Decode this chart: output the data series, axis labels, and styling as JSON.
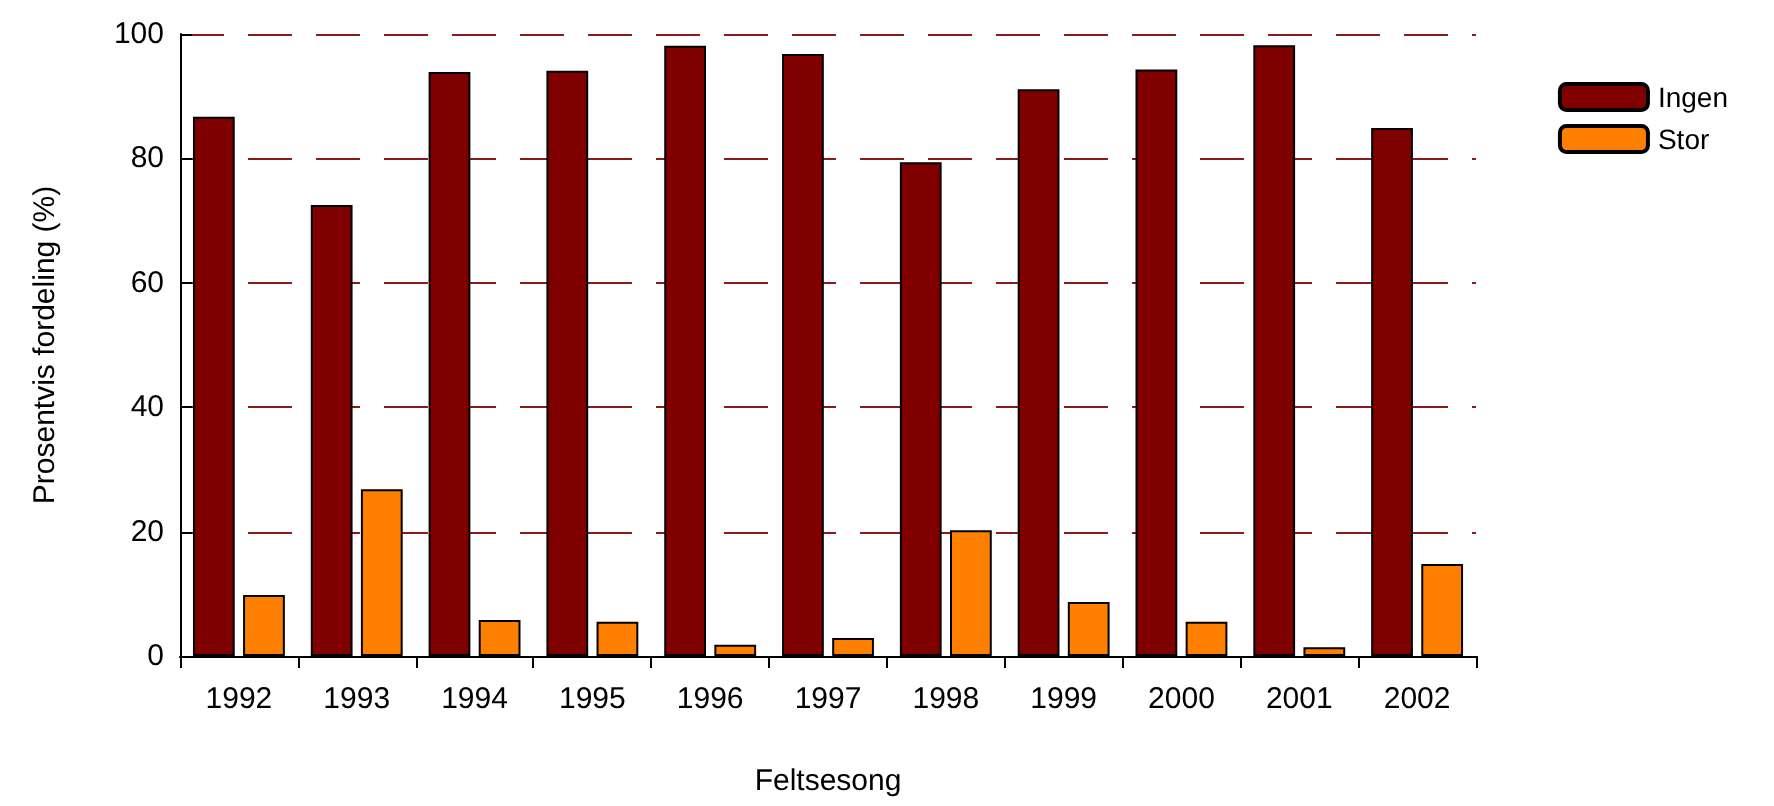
{
  "chart_data": {
    "type": "bar",
    "xlabel": "Feltsesong",
    "ylabel": "Prosentvis fordeling (%)",
    "categories": [
      "1992",
      "1993",
      "1994",
      "1995",
      "1996",
      "1997",
      "1998",
      "1999",
      "2000",
      "2001",
      "2002"
    ],
    "series": [
      {
        "name": "Ingen",
        "color": "#800000",
        "values": [
          86.7,
          72.5,
          93.9,
          94.1,
          98.1,
          96.8,
          79.4,
          91.1,
          94.3,
          98.2,
          84.9
        ]
      },
      {
        "name": "Stor",
        "color": "#ff8000",
        "values": [
          9.8,
          26.8,
          5.8,
          5.5,
          1.8,
          2.9,
          20.2,
          8.7,
          5.5,
          1.4,
          14.8
        ]
      }
    ],
    "ylim": [
      0,
      100
    ],
    "yticks": [
      0,
      20,
      40,
      60,
      80,
      100
    ],
    "grid": "y",
    "line_style": "dashed",
    "legend": "top right"
  }
}
